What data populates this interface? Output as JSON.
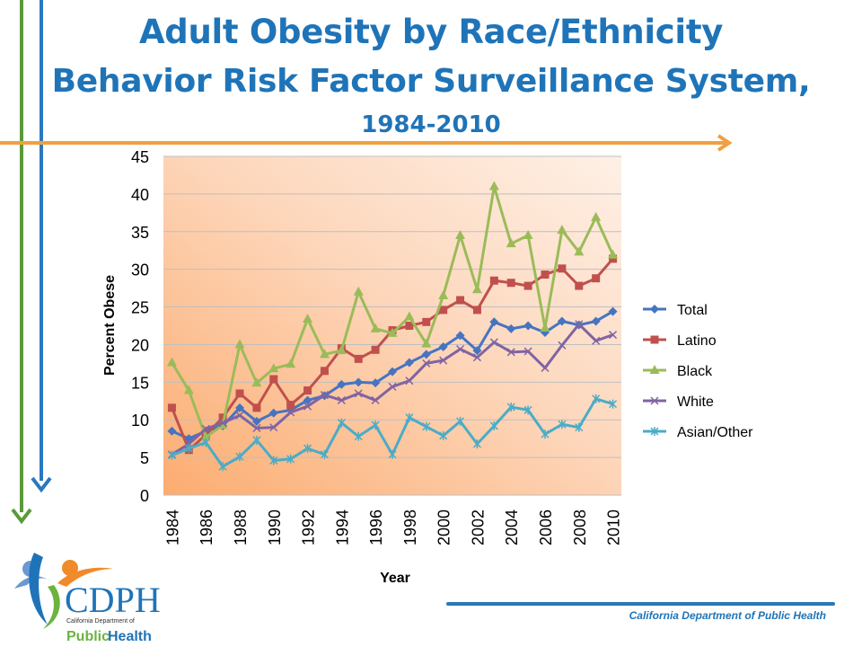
{
  "title": {
    "line1": "Adult Obesity by Race/Ethnicity",
    "line2": "Behavior Risk Factor Surveillance System,",
    "line3": "1984-2010"
  },
  "footer": "California Department of Public Health",
  "logo": {
    "text_main": "CDPH",
    "text_sub": "California Department of",
    "text_bottom_1": "Public",
    "text_bottom_2": "Health"
  },
  "colors": {
    "title": "#1f74b8",
    "arrow_orange": "#f0a040",
    "arrow_green": "#5a9a3a",
    "arrow_blue": "#2a78c0"
  },
  "chart_data": {
    "type": "line",
    "title": "",
    "xlabel": "Year",
    "ylabel": "Percent Obese",
    "ylim": [
      0,
      45
    ],
    "yticks": [
      0,
      5,
      10,
      15,
      20,
      25,
      30,
      35,
      40,
      45
    ],
    "xticks": [
      "1984",
      "1986",
      "1988",
      "1990",
      "1992",
      "1994",
      "1996",
      "1998",
      "2000",
      "2002",
      "2004",
      "2006",
      "2008",
      "2010"
    ],
    "x": [
      1984,
      1985,
      1986,
      1987,
      1988,
      1989,
      1990,
      1991,
      1992,
      1993,
      1994,
      1995,
      1996,
      1997,
      1998,
      1999,
      2000,
      2001,
      2002,
      2003,
      2004,
      2005,
      2006,
      2007,
      2008,
      2009,
      2010
    ],
    "legend_position": "right",
    "series": [
      {
        "name": "Total",
        "color": "#4674c1",
        "marker": "diamond",
        "values": [
          8.5,
          7.5,
          8.5,
          9.2,
          11.6,
          9.8,
          10.9,
          11.3,
          12.6,
          13.2,
          14.7,
          15.0,
          14.9,
          16.4,
          17.6,
          18.7,
          19.7,
          21.2,
          19.2,
          23.0,
          22.1,
          22.5,
          21.6,
          23.1,
          22.6,
          23.1,
          24.4
        ]
      },
      {
        "name": "Latino",
        "color": "#c0504d",
        "marker": "square",
        "values": [
          11.6,
          6.0,
          8.0,
          10.3,
          13.5,
          11.6,
          15.4,
          12.0,
          13.9,
          16.5,
          19.5,
          18.1,
          19.3,
          21.9,
          22.5,
          23.0,
          24.6,
          25.9,
          24.6,
          28.5,
          28.2,
          27.8,
          29.3,
          30.1,
          27.8,
          28.8,
          31.4
        ]
      },
      {
        "name": "Black",
        "color": "#9bbb59",
        "marker": "triangle",
        "values": [
          17.6,
          13.9,
          7.7,
          9.3,
          20.0,
          14.9,
          16.8,
          17.4,
          23.4,
          18.7,
          19.2,
          27.0,
          22.1,
          21.5,
          23.7,
          20.1,
          26.5,
          34.5,
          27.3,
          41.0,
          33.4,
          34.5,
          22.2,
          35.2,
          32.3,
          36.9,
          31.9
        ]
      },
      {
        "name": "White",
        "color": "#8064a2",
        "marker": "x",
        "values": [
          5.4,
          6.8,
          8.8,
          9.6,
          10.6,
          8.9,
          9.0,
          11.0,
          11.8,
          13.3,
          12.6,
          13.5,
          12.6,
          14.4,
          15.2,
          17.5,
          17.9,
          19.4,
          18.3,
          20.3,
          19.0,
          19.1,
          16.9,
          19.9,
          22.7,
          20.5,
          21.3
        ]
      },
      {
        "name": "Asian/Other",
        "color": "#4bacc6",
        "marker": "star",
        "values": [
          5.3,
          6.2,
          7.0,
          3.8,
          5.1,
          7.3,
          4.6,
          4.8,
          6.2,
          5.4,
          9.6,
          7.8,
          9.3,
          5.4,
          10.3,
          9.1,
          7.9,
          9.8,
          6.8,
          9.2,
          11.7,
          11.3,
          8.1,
          9.4,
          9.0,
          12.8,
          12.1
        ]
      }
    ]
  }
}
